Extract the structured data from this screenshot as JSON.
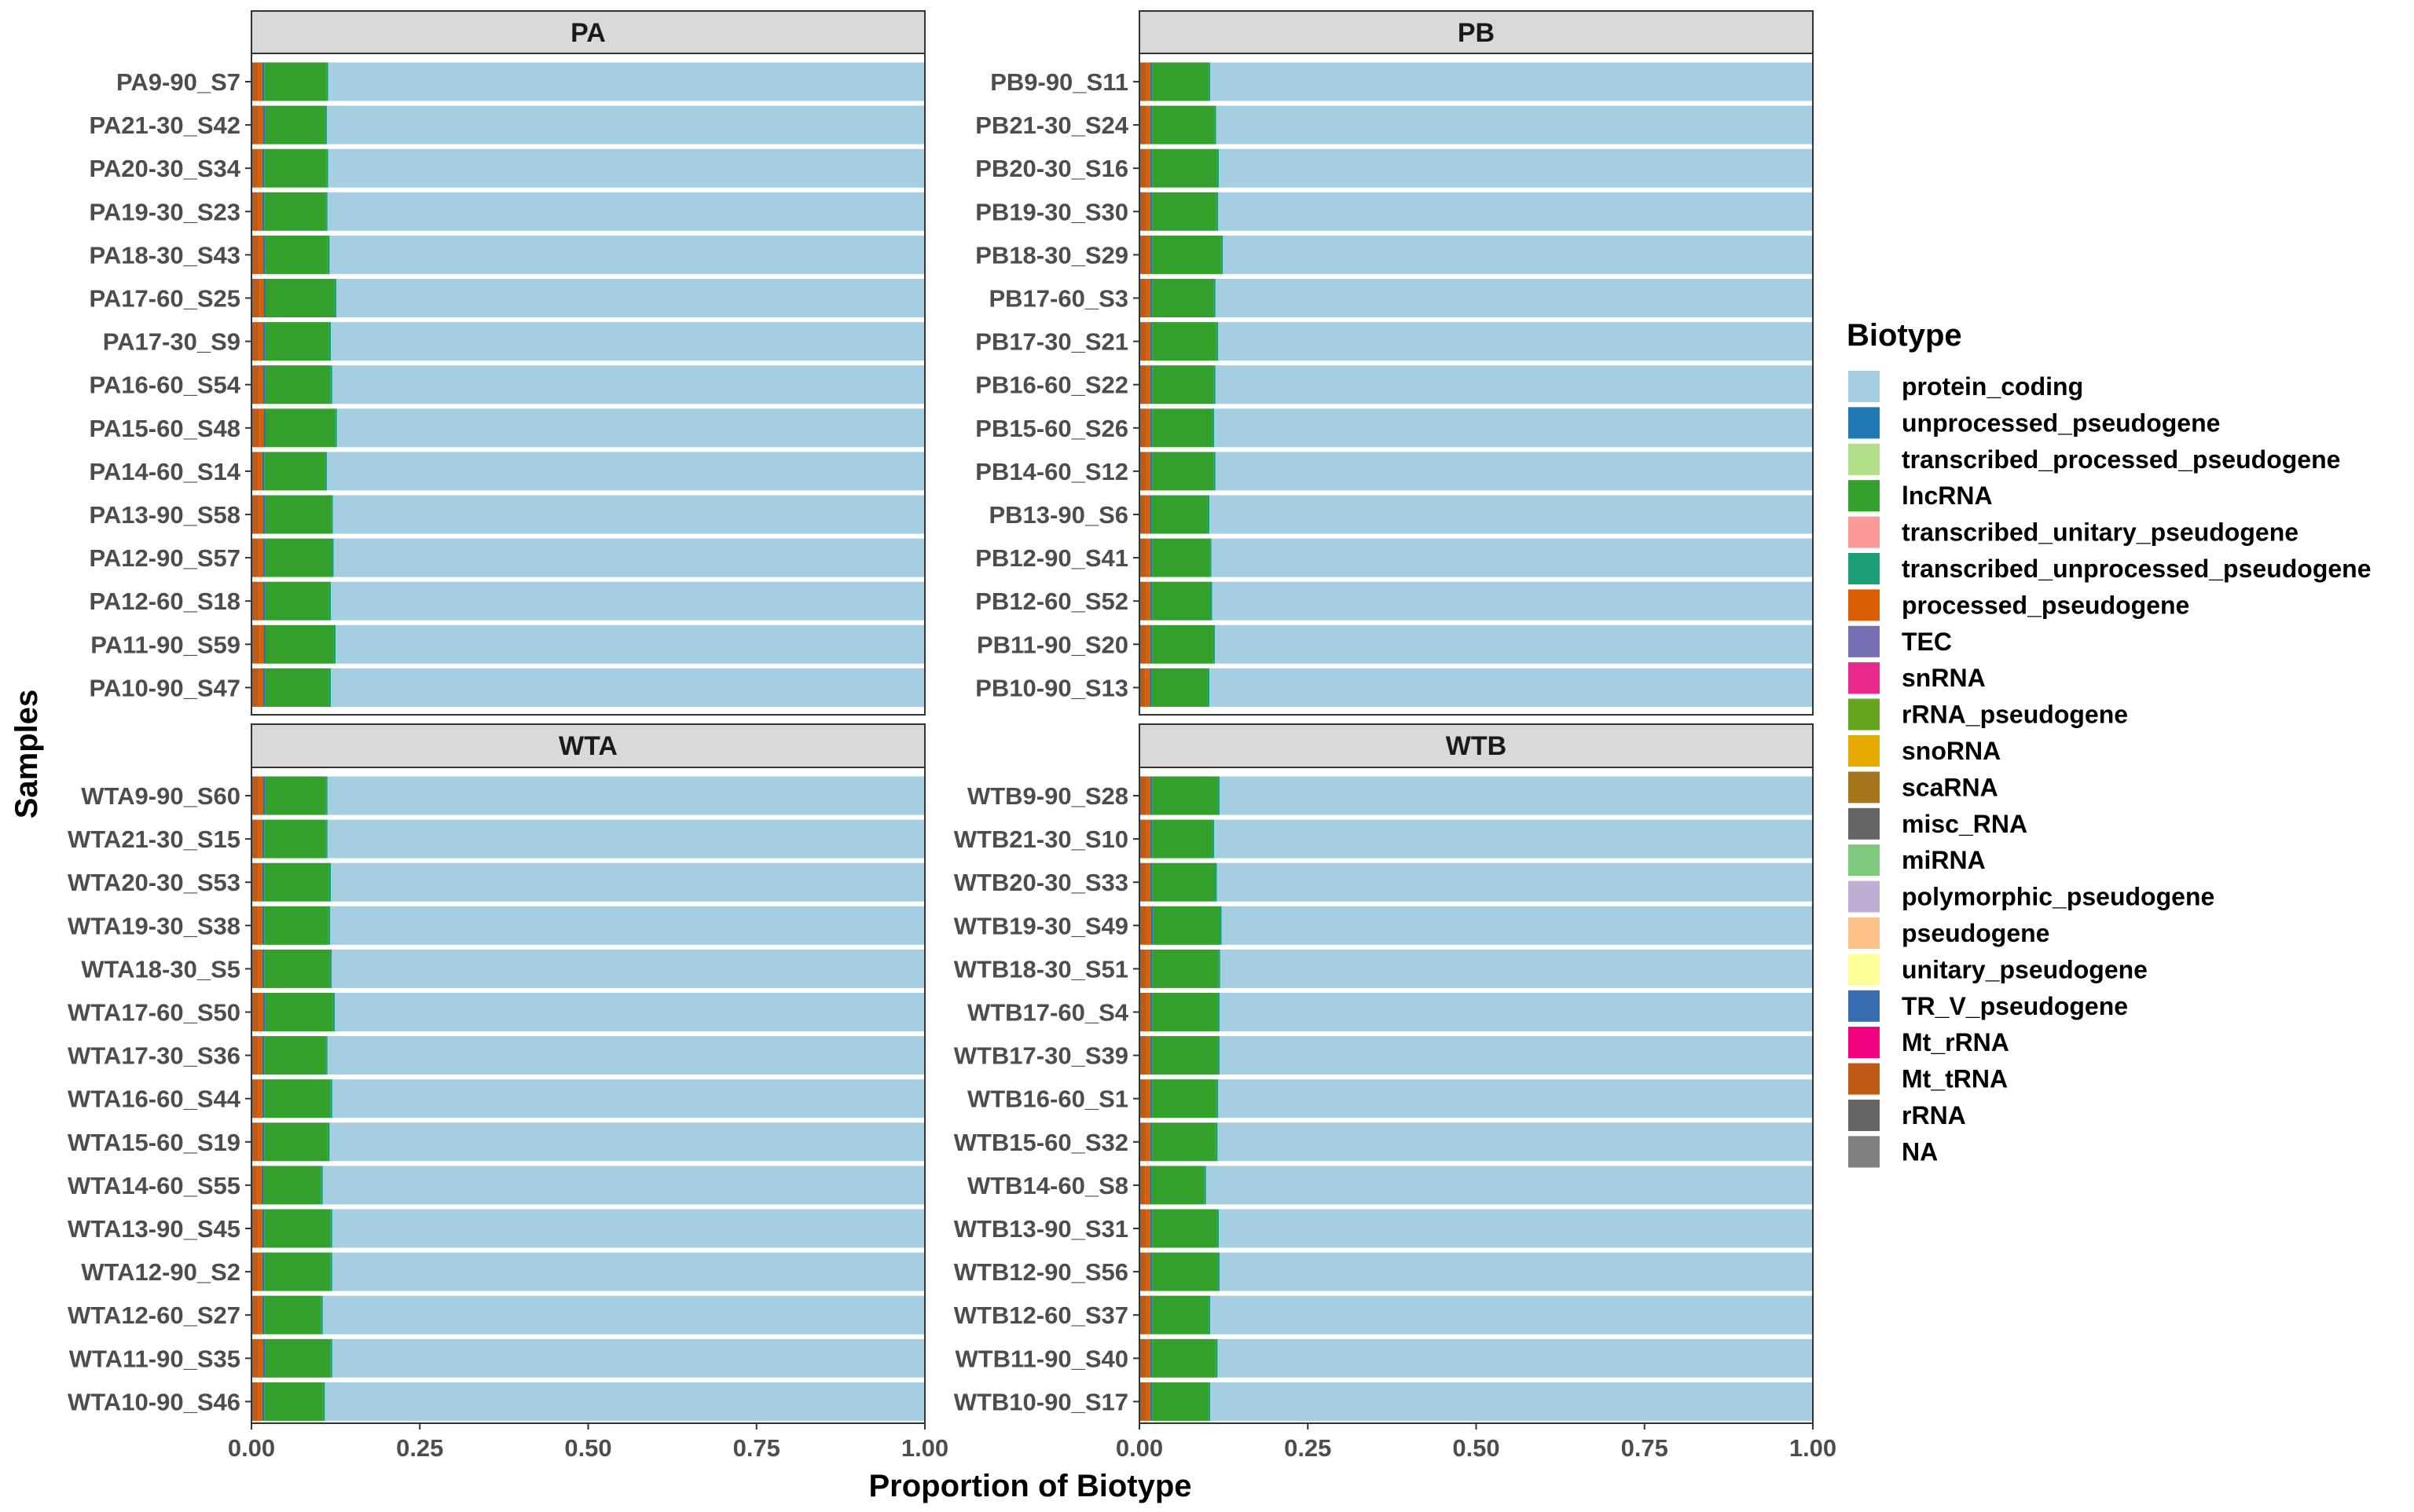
{
  "chart_data": {
    "type": "bar",
    "orientation": "horizontal",
    "stacked": true,
    "facet_layout": "2x2",
    "xlabel": "Proportion of Biotype",
    "ylabel": "Samples",
    "xlim": [
      0,
      1
    ],
    "x_ticks": [
      "0.00",
      "0.25",
      "0.50",
      "0.75",
      "1.00"
    ],
    "grid": false,
    "legend_position": "right",
    "legend": {
      "title": "Biotype",
      "entries": [
        {
          "label": "protein_coding",
          "color": "#a6cee3"
        },
        {
          "label": "unprocessed_pseudogene",
          "color": "#1f78b4"
        },
        {
          "label": "transcribed_processed_pseudogene",
          "color": "#b2df8a"
        },
        {
          "label": "lncRNA",
          "color": "#33a02c"
        },
        {
          "label": "transcribed_unitary_pseudogene",
          "color": "#fb9a99"
        },
        {
          "label": "transcribed_unprocessed_pseudogene",
          "color": "#1b9e77"
        },
        {
          "label": "processed_pseudogene",
          "color": "#d95f02"
        },
        {
          "label": "TEC",
          "color": "#7570b3"
        },
        {
          "label": "snRNA",
          "color": "#e7298a"
        },
        {
          "label": "rRNA_pseudogene",
          "color": "#66a61e"
        },
        {
          "label": "snoRNA",
          "color": "#e6ab02"
        },
        {
          "label": "scaRNA",
          "color": "#a6761d"
        },
        {
          "label": "misc_RNA",
          "color": "#666666"
        },
        {
          "label": "miRNA",
          "color": "#7fc97f"
        },
        {
          "label": "polymorphic_pseudogene",
          "color": "#beaed4"
        },
        {
          "label": "pseudogene",
          "color": "#fdc086"
        },
        {
          "label": "unitary_pseudogene",
          "color": "#ffff99"
        },
        {
          "label": "TR_V_pseudogene",
          "color": "#386cb0"
        },
        {
          "label": "Mt_rRNA",
          "color": "#f0027f"
        },
        {
          "label": "Mt_tRNA",
          "color": "#bf5b17"
        },
        {
          "label": "rRNA",
          "color": "#666666"
        },
        {
          "label": "NA",
          "color": "#808080"
        }
      ]
    },
    "panels": [
      {
        "title": "PA",
        "samples": [
          "PA9-90_S7",
          "PA21-30_S42",
          "PA20-30_S34",
          "PA19-30_S23",
          "PA18-30_S43",
          "PA17-60_S25",
          "PA17-30_S9",
          "PA16-60_S54",
          "PA15-60_S48",
          "PA14-60_S14",
          "PA13-90_S58",
          "PA12-90_S57",
          "PA12-60_S18",
          "PA11-90_S59",
          "PA10-90_S47"
        ],
        "series": [
          {
            "name": "Mt_tRNA",
            "values": [
              0.01,
              0.011,
              0.01,
              0.01,
              0.011,
              0.012,
              0.011,
              0.011,
              0.012,
              0.01,
              0.011,
              0.011,
              0.011,
              0.012,
              0.011
            ]
          },
          {
            "name": "processed_pseudogene",
            "values": [
              0.006,
              0.006,
              0.006,
              0.006,
              0.006,
              0.006,
              0.006,
              0.006,
              0.006,
              0.006,
              0.006,
              0.006,
              0.006,
              0.006,
              0.006
            ]
          },
          {
            "name": "unprocessed_pseudogene",
            "values": [
              0.003,
              0.003,
              0.003,
              0.003,
              0.003,
              0.003,
              0.003,
              0.003,
              0.003,
              0.003,
              0.003,
              0.003,
              0.003,
              0.003,
              0.003
            ]
          },
          {
            "name": "lncRNA",
            "values": [
              0.092,
              0.089,
              0.092,
              0.091,
              0.093,
              0.102,
              0.095,
              0.097,
              0.103,
              0.09,
              0.098,
              0.099,
              0.095,
              0.101,
              0.095
            ]
          },
          {
            "name": "transcribed_unprocessed_pseudogene",
            "values": [
              0.003,
              0.003,
              0.003,
              0.003,
              0.003,
              0.003,
              0.003,
              0.003,
              0.003,
              0.003,
              0.003,
              0.003,
              0.003,
              0.003,
              0.003
            ]
          },
          {
            "name": "protein_coding",
            "values": [
              0.886,
              0.888,
              0.886,
              0.887,
              0.884,
              0.874,
              0.882,
              0.88,
              0.873,
              0.888,
              0.879,
              0.878,
              0.882,
              0.875,
              0.882
            ]
          }
        ]
      },
      {
        "title": "PB",
        "samples": [
          "PB9-90_S11",
          "PB21-30_S24",
          "PB20-30_S16",
          "PB19-30_S30",
          "PB18-30_S29",
          "PB17-60_S3",
          "PB17-30_S21",
          "PB16-60_S22",
          "PB15-60_S26",
          "PB14-60_S12",
          "PB13-90_S6",
          "PB12-90_S41",
          "PB12-60_S52",
          "PB11-90_S20",
          "PB10-90_S13"
        ],
        "series": [
          {
            "name": "Mt_tRNA",
            "values": [
              0.01,
              0.01,
              0.01,
              0.01,
              0.01,
              0.01,
              0.01,
              0.01,
              0.01,
              0.01,
              0.009,
              0.01,
              0.01,
              0.01,
              0.009
            ]
          },
          {
            "name": "processed_pseudogene",
            "values": [
              0.006,
              0.006,
              0.006,
              0.006,
              0.006,
              0.006,
              0.006,
              0.006,
              0.006,
              0.006,
              0.006,
              0.006,
              0.006,
              0.006,
              0.006
            ]
          },
          {
            "name": "unprocessed_pseudogene",
            "values": [
              0.003,
              0.003,
              0.003,
              0.003,
              0.003,
              0.003,
              0.003,
              0.003,
              0.003,
              0.003,
              0.003,
              0.003,
              0.003,
              0.003,
              0.003
            ]
          },
          {
            "name": "lncRNA",
            "values": [
              0.083,
              0.092,
              0.096,
              0.095,
              0.102,
              0.091,
              0.095,
              0.091,
              0.089,
              0.091,
              0.083,
              0.085,
              0.086,
              0.09,
              0.083
            ]
          },
          {
            "name": "transcribed_unprocessed_pseudogene",
            "values": [
              0.003,
              0.003,
              0.003,
              0.003,
              0.003,
              0.003,
              0.003,
              0.003,
              0.003,
              0.003,
              0.003,
              0.003,
              0.003,
              0.003,
              0.003
            ]
          },
          {
            "name": "protein_coding",
            "values": [
              0.895,
              0.886,
              0.882,
              0.883,
              0.876,
              0.887,
              0.883,
              0.887,
              0.889,
              0.887,
              0.896,
              0.893,
              0.892,
              0.888,
              0.896
            ]
          }
        ]
      },
      {
        "title": "WTA",
        "samples": [
          "WTA9-90_S60",
          "WTA21-30_S15",
          "WTA20-30_S53",
          "WTA19-30_S38",
          "WTA18-30_S5",
          "WTA17-60_S50",
          "WTA17-30_S36",
          "WTA16-60_S44",
          "WTA15-60_S19",
          "WTA14-60_S55",
          "WTA13-90_S45",
          "WTA12-90_S2",
          "WTA12-60_S27",
          "WTA11-90_S35",
          "WTA10-90_S46"
        ],
        "series": [
          {
            "name": "Mt_tRNA",
            "values": [
              0.011,
              0.01,
              0.01,
              0.01,
              0.01,
              0.011,
              0.01,
              0.01,
              0.01,
              0.009,
              0.01,
              0.01,
              0.01,
              0.011,
              0.01
            ]
          },
          {
            "name": "processed_pseudogene",
            "values": [
              0.006,
              0.006,
              0.006,
              0.006,
              0.006,
              0.006,
              0.006,
              0.006,
              0.006,
              0.006,
              0.006,
              0.006,
              0.006,
              0.006,
              0.006
            ]
          },
          {
            "name": "unprocessed_pseudogene",
            "values": [
              0.003,
              0.003,
              0.003,
              0.003,
              0.003,
              0.003,
              0.003,
              0.003,
              0.003,
              0.003,
              0.003,
              0.003,
              0.003,
              0.003,
              0.003
            ]
          },
          {
            "name": "lncRNA",
            "values": [
              0.09,
              0.091,
              0.096,
              0.095,
              0.097,
              0.101,
              0.091,
              0.098,
              0.094,
              0.085,
              0.098,
              0.098,
              0.084,
              0.097,
              0.087
            ]
          },
          {
            "name": "transcribed_unprocessed_pseudogene",
            "values": [
              0.003,
              0.003,
              0.003,
              0.003,
              0.003,
              0.003,
              0.003,
              0.003,
              0.003,
              0.003,
              0.003,
              0.003,
              0.003,
              0.003,
              0.003
            ]
          },
          {
            "name": "protein_coding",
            "values": [
              0.887,
              0.887,
              0.882,
              0.883,
              0.881,
              0.876,
              0.887,
              0.88,
              0.884,
              0.894,
              0.88,
              0.88,
              0.894,
              0.88,
              0.891
            ]
          }
        ]
      },
      {
        "title": "WTB",
        "samples": [
          "WTB9-90_S28",
          "WTB21-30_S10",
          "WTB20-30_S33",
          "WTB19-30_S49",
          "WTB18-30_S51",
          "WTB17-60_S4",
          "WTB17-30_S39",
          "WTB16-60_S1",
          "WTB15-60_S32",
          "WTB14-60_S8",
          "WTB13-90_S31",
          "WTB12-90_S56",
          "WTB12-60_S37",
          "WTB11-90_S40",
          "WTB10-90_S17"
        ],
        "series": [
          {
            "name": "Mt_tRNA",
            "values": [
              0.01,
              0.01,
              0.01,
              0.011,
              0.01,
              0.01,
              0.01,
              0.01,
              0.01,
              0.009,
              0.01,
              0.01,
              0.01,
              0.01,
              0.01
            ]
          },
          {
            "name": "processed_pseudogene",
            "values": [
              0.006,
              0.006,
              0.006,
              0.006,
              0.006,
              0.006,
              0.006,
              0.006,
              0.006,
              0.006,
              0.006,
              0.006,
              0.006,
              0.006,
              0.006
            ]
          },
          {
            "name": "unprocessed_pseudogene",
            "values": [
              0.003,
              0.003,
              0.003,
              0.003,
              0.003,
              0.003,
              0.003,
              0.003,
              0.003,
              0.003,
              0.003,
              0.003,
              0.003,
              0.003,
              0.003
            ]
          },
          {
            "name": "lncRNA",
            "values": [
              0.097,
              0.089,
              0.093,
              0.099,
              0.098,
              0.097,
              0.097,
              0.095,
              0.094,
              0.078,
              0.096,
              0.097,
              0.083,
              0.094,
              0.083
            ]
          },
          {
            "name": "transcribed_unprocessed_pseudogene",
            "values": [
              0.003,
              0.003,
              0.003,
              0.003,
              0.003,
              0.003,
              0.003,
              0.003,
              0.003,
              0.003,
              0.003,
              0.003,
              0.003,
              0.003,
              0.003
            ]
          },
          {
            "name": "protein_coding",
            "values": [
              0.881,
              0.889,
              0.885,
              0.878,
              0.88,
              0.881,
              0.881,
              0.883,
              0.884,
              0.901,
              0.882,
              0.881,
              0.895,
              0.884,
              0.895
            ]
          }
        ]
      }
    ]
  }
}
